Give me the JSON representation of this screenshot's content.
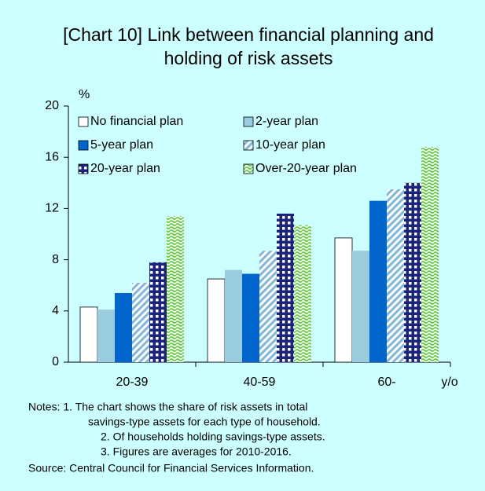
{
  "chart_data": {
    "type": "bar",
    "title": [
      "[Chart 10] Link between financial planning and",
      "holding of risk assets"
    ],
    "y_unit": "%",
    "x_unit": "y/o",
    "categories": [
      "20-39",
      "40-59",
      "60-"
    ],
    "series": [
      {
        "name": "No financial plan",
        "color": "#ffffff",
        "pattern": "solid",
        "values": [
          4.3,
          6.5,
          9.7
        ]
      },
      {
        "name": "2-year plan",
        "color": "#99ccdd",
        "pattern": "solid",
        "values": [
          4.1,
          7.2,
          8.7
        ]
      },
      {
        "name": "5-year plan",
        "color": "#0066cc",
        "pattern": "solid",
        "values": [
          5.4,
          6.9,
          12.6
        ]
      },
      {
        "name": "10-year plan",
        "color": "#7fb8dc",
        "pattern": "diagonal",
        "values": [
          6.2,
          8.7,
          13.5
        ]
      },
      {
        "name": "20-year plan",
        "color": "#1a237e",
        "pattern": "grid",
        "values": [
          7.8,
          11.6,
          14.0
        ]
      },
      {
        "name": "Over-20-year plan",
        "color": "#55cc33",
        "pattern": "wave",
        "values": [
          11.4,
          10.7,
          16.8
        ]
      }
    ],
    "ylim": [
      0,
      20
    ],
    "yticks": [
      0,
      4,
      8,
      12,
      16,
      20
    ],
    "legend": "upper left",
    "notes": [
      "Notes: 1. The  chart shows the share of risk assets in total",
      "savings-type assets for each type of household.",
      "2. Of households holding savings-type assets.",
      "3. Figures are averages for 2010-2016.",
      "Source: Central Council for Financial Services Information."
    ]
  }
}
